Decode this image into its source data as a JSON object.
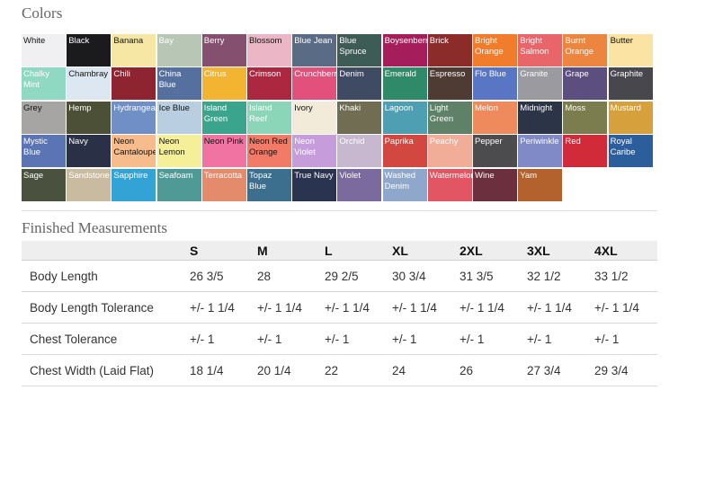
{
  "colors_title": "Colors",
  "measurements_title": "Finished Measurements",
  "swatches": [
    {
      "name": "White",
      "bg": "#f0f0f2",
      "fg": "#111"
    },
    {
      "name": "Black",
      "bg": "#1b1b1d",
      "fg": "#fff"
    },
    {
      "name": "Banana",
      "bg": "#f6e8a4",
      "fg": "#111"
    },
    {
      "name": "Bay",
      "bg": "#b7c6b5",
      "fg": "#fff"
    },
    {
      "name": "Berry",
      "bg": "#85506f",
      "fg": "#fff"
    },
    {
      "name": "Blossom",
      "bg": "#ebb7c6",
      "fg": "#111"
    },
    {
      "name": "Blue Jean",
      "bg": "#5a6c85",
      "fg": "#fff"
    },
    {
      "name": "Blue Spruce",
      "bg": "#3d5c55",
      "fg": "#fff"
    },
    {
      "name": "Boysenberry",
      "bg": "#a51d5a",
      "fg": "#fff"
    },
    {
      "name": "Brick",
      "bg": "#8b2c2b",
      "fg": "#fff"
    },
    {
      "name": "Bright Orange",
      "bg": "#f07c2c",
      "fg": "#fff"
    },
    {
      "name": "Bright Salmon",
      "bg": "#e8666a",
      "fg": "#fff"
    },
    {
      "name": "Burnt Orange",
      "bg": "#ec8540",
      "fg": "#fff"
    },
    {
      "name": "Butter",
      "bg": "#fbe3a3",
      "fg": "#111"
    },
    {
      "name": "Chalky Mint",
      "bg": "#8fd8c2",
      "fg": "#fff"
    },
    {
      "name": "Chambray",
      "bg": "#dce7f2",
      "fg": "#111"
    },
    {
      "name": "Chili",
      "bg": "#8d2430",
      "fg": "#fff"
    },
    {
      "name": "China Blue",
      "bg": "#55709f",
      "fg": "#fff"
    },
    {
      "name": "Citrus",
      "bg": "#f2b431",
      "fg": "#fff"
    },
    {
      "name": "Crimson",
      "bg": "#ac2840",
      "fg": "#fff"
    },
    {
      "name": "Crunchberry",
      "bg": "#e2517c",
      "fg": "#fff"
    },
    {
      "name": "Denim",
      "bg": "#3e4b62",
      "fg": "#fff"
    },
    {
      "name": "Emerald",
      "bg": "#2f8a6a",
      "fg": "#fff"
    },
    {
      "name": "Espresso",
      "bg": "#4e3b34",
      "fg": "#fff"
    },
    {
      "name": "Flo Blue",
      "bg": "#5876c4",
      "fg": "#fff"
    },
    {
      "name": "Granite",
      "bg": "#9a9aa0",
      "fg": "#fff"
    },
    {
      "name": "Grape",
      "bg": "#5d4e80",
      "fg": "#fff"
    },
    {
      "name": "Graphite",
      "bg": "#47474d",
      "fg": "#fff"
    },
    {
      "name": "Grey",
      "bg": "#a6a5a3",
      "fg": "#111"
    },
    {
      "name": "Hemp",
      "bg": "#4b5036",
      "fg": "#fff"
    },
    {
      "name": "Hydrangea",
      "bg": "#6f8fc6",
      "fg": "#fff"
    },
    {
      "name": "Ice Blue",
      "bg": "#b9cfe1",
      "fg": "#111"
    },
    {
      "name": "Island Green",
      "bg": "#3aa58c",
      "fg": "#fff"
    },
    {
      "name": "Island Reef",
      "bg": "#8bd6b9",
      "fg": "#fff"
    },
    {
      "name": "Ivory",
      "bg": "#f2ebd9",
      "fg": "#111"
    },
    {
      "name": "Khaki",
      "bg": "#716d53",
      "fg": "#fff"
    },
    {
      "name": "Lagoon",
      "bg": "#4f9fb2",
      "fg": "#fff"
    },
    {
      "name": "Light Green",
      "bg": "#5f8167",
      "fg": "#fff"
    },
    {
      "name": "Melon",
      "bg": "#ef8a5c",
      "fg": "#fff"
    },
    {
      "name": "Midnight",
      "bg": "#2c3447",
      "fg": "#fff"
    },
    {
      "name": "Moss",
      "bg": "#7b7d4f",
      "fg": "#fff"
    },
    {
      "name": "Mustard",
      "bg": "#d6a03d",
      "fg": "#fff"
    },
    {
      "name": "Mystic Blue",
      "bg": "#5a74b4",
      "fg": "#fff"
    },
    {
      "name": "Navy",
      "bg": "#2a3046",
      "fg": "#fff"
    },
    {
      "name": "Neon Cantaloupe",
      "bg": "#f7bc8c",
      "fg": "#111"
    },
    {
      "name": "Neon Lemon",
      "bg": "#f4ef98",
      "fg": "#111"
    },
    {
      "name": "Neon Pink",
      "bg": "#f073a2",
      "fg": "#111"
    },
    {
      "name": "Neon Red Orange",
      "bg": "#f27b68",
      "fg": "#111"
    },
    {
      "name": "Neon Violet",
      "bg": "#c69cdb",
      "fg": "#fff"
    },
    {
      "name": "Orchid",
      "bg": "#c7b7cf",
      "fg": "#fff"
    },
    {
      "name": "Paprika",
      "bg": "#d2473f",
      "fg": "#fff"
    },
    {
      "name": "Peachy",
      "bg": "#f2ad98",
      "fg": "#fff"
    },
    {
      "name": "Pepper",
      "bg": "#4c4c4e",
      "fg": "#fff"
    },
    {
      "name": "Periwinkle",
      "bg": "#7f8ac6",
      "fg": "#fff"
    },
    {
      "name": "Red",
      "bg": "#d12b3a",
      "fg": "#fff"
    },
    {
      "name": "Royal Caribe",
      "bg": "#2c5e9c",
      "fg": "#fff"
    },
    {
      "name": "Sage",
      "bg": "#4a513f",
      "fg": "#fff"
    },
    {
      "name": "Sandstone",
      "bg": "#c9bba0",
      "fg": "#fff"
    },
    {
      "name": "Sapphire",
      "bg": "#33a3d6",
      "fg": "#fff"
    },
    {
      "name": "Seafoam",
      "bg": "#4f9a96",
      "fg": "#fff"
    },
    {
      "name": "Terracotta",
      "bg": "#e48b6c",
      "fg": "#fff"
    },
    {
      "name": "Topaz Blue",
      "bg": "#3c6e8e",
      "fg": "#fff"
    },
    {
      "name": "True Navy",
      "bg": "#2a3350",
      "fg": "#fff"
    },
    {
      "name": "Violet",
      "bg": "#7a6a9e",
      "fg": "#fff"
    },
    {
      "name": "Washed Denim",
      "bg": "#8fa7cb",
      "fg": "#fff"
    },
    {
      "name": "Watermelon",
      "bg": "#e25563",
      "fg": "#fff"
    },
    {
      "name": "Wine",
      "bg": "#6c2f3e",
      "fg": "#fff"
    },
    {
      "name": "Yam",
      "bg": "#b3622d",
      "fg": "#fff"
    }
  ],
  "measurements": {
    "sizes": [
      "S",
      "M",
      "L",
      "XL",
      "2XL",
      "3XL",
      "4XL"
    ],
    "rows": [
      {
        "label": "Body Length",
        "values": [
          "26 3/5",
          "28",
          "29 2/5",
          "30 3/4",
          "31 3/5",
          "32 1/2",
          "33 1/2"
        ]
      },
      {
        "label": "Body Length Tolerance",
        "values": [
          "+/- 1 1/4",
          "+/- 1 1/4",
          "+/- 1 1/4",
          "+/- 1 1/4",
          "+/- 1 1/4",
          "+/- 1 1/4",
          "+/- 1 1/4"
        ]
      },
      {
        "label": "Chest Tolerance",
        "values": [
          "+/- 1",
          "+/- 1",
          "+/- 1",
          "+/- 1",
          "+/- 1",
          "+/- 1",
          "+/- 1"
        ]
      },
      {
        "label": "Chest Width (Laid Flat)",
        "values": [
          "18 1/4",
          "20 1/4",
          "22",
          "24",
          "26",
          "27 3/4",
          "29 3/4"
        ]
      }
    ]
  }
}
